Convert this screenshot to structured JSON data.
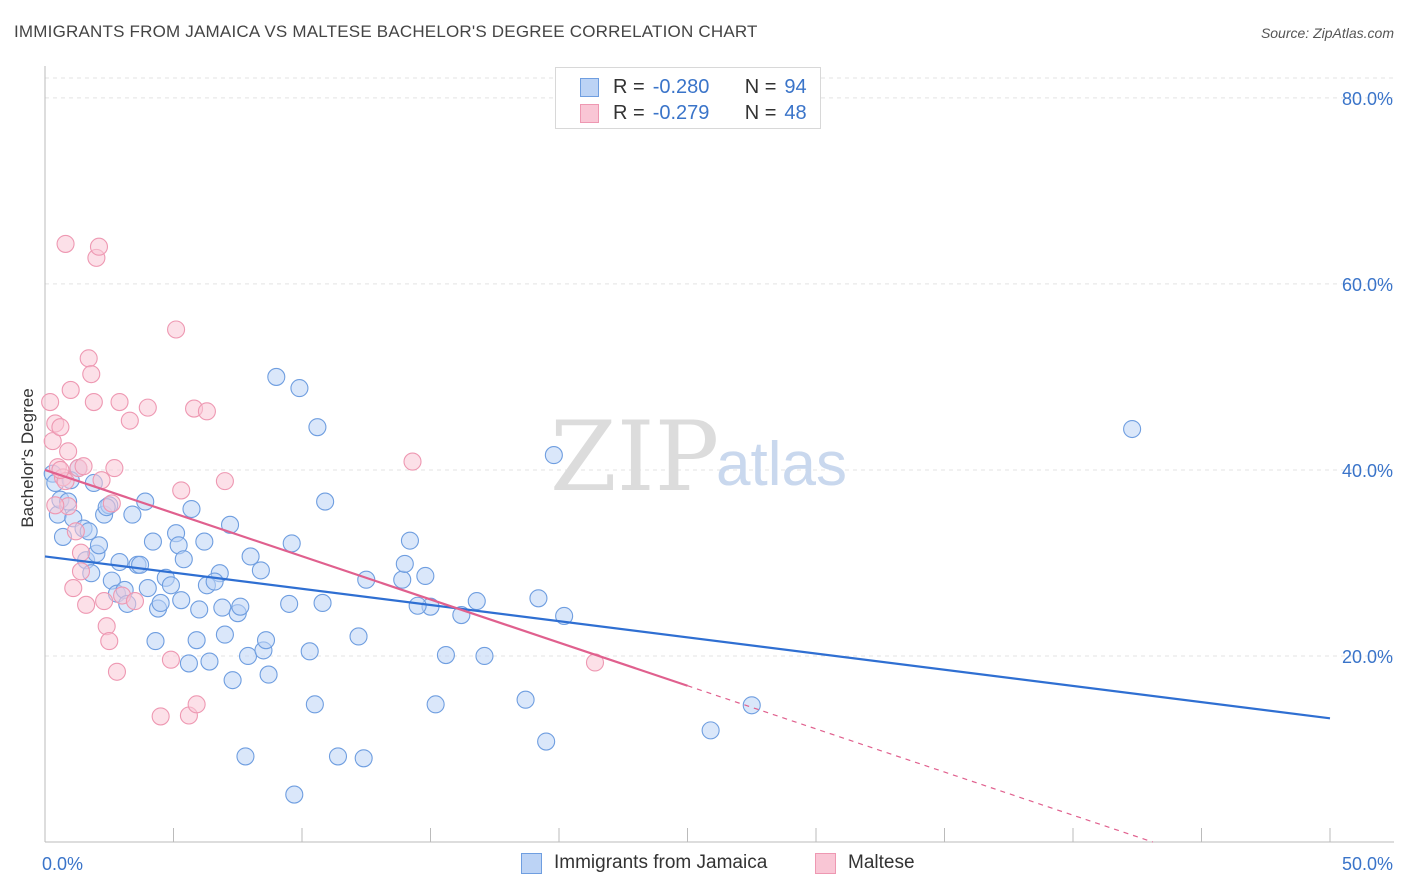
{
  "title": "IMMIGRANTS FROM JAMAICA VS MALTESE BACHELOR'S DEGREE CORRELATION CHART",
  "source": "Source: ZipAtlas.com",
  "watermark": {
    "zip": "ZIP",
    "atlas": "atlas"
  },
  "stats": [
    {
      "r_label": "R =",
      "r_value": "-0.280",
      "n_label": "N =",
      "n_value": "94",
      "fill": "#bcd3f5",
      "stroke": "#6f9ee0"
    },
    {
      "r_label": "R =",
      "r_value": "-0.279",
      "n_label": "N =",
      "n_value": "48",
      "fill": "#f9c6d5",
      "stroke": "#ee98b2"
    }
  ],
  "legend": [
    {
      "label": "Immigrants from Jamaica",
      "fill": "#bcd3f5",
      "stroke": "#6f9ee0"
    },
    {
      "label": "Maltese",
      "fill": "#f9c6d5",
      "stroke": "#ee98b2"
    }
  ],
  "chart_data": {
    "type": "scatter",
    "title": "IMMIGRANTS FROM JAMAICA VS MALTESE BACHELOR'S DEGREE CORRELATION CHART",
    "xlabel": "",
    "ylabel": "Bachelor's Degree",
    "xlim": [
      0,
      50
    ],
    "ylim": [
      0,
      83
    ],
    "x_tick_labels": [
      {
        "value": 0,
        "label": "0.0%"
      },
      {
        "value": 50,
        "label": "50.0%"
      }
    ],
    "x_minor_ticks": [
      5,
      10,
      15,
      20,
      25,
      30,
      35,
      40,
      45,
      50
    ],
    "y_ticks": [
      {
        "value": 20,
        "label": "20.0%"
      },
      {
        "value": 40,
        "label": "40.0%"
      },
      {
        "value": 60,
        "label": "60.0%"
      },
      {
        "value": 80,
        "label": "80.0%"
      }
    ],
    "grid": true,
    "legend_position": "bottom-center",
    "series": [
      {
        "name": "Immigrants from Jamaica",
        "color": "#6f9ee0",
        "fill": "#bcd3f5",
        "line_color": "#2f6fd2",
        "trend": {
          "x0": 0,
          "y0": 30.7,
          "x1": 50,
          "y1": 13.3,
          "x_dash_end": 50
        },
        "points": [
          [
            0.3,
            39.6
          ],
          [
            0.4,
            38.6
          ],
          [
            0.5,
            35.2
          ],
          [
            0.6,
            36.8
          ],
          [
            0.7,
            32.8
          ],
          [
            0.9,
            36.6
          ],
          [
            1.1,
            34.8
          ],
          [
            1.3,
            40.2
          ],
          [
            1.5,
            33.7
          ],
          [
            1.6,
            30.3
          ],
          [
            1.7,
            33.4
          ],
          [
            1.8,
            28.9
          ],
          [
            2.0,
            31.0
          ],
          [
            2.1,
            31.9
          ],
          [
            1.9,
            38.6
          ],
          [
            2.3,
            35.2
          ],
          [
            2.5,
            36.2
          ],
          [
            2.6,
            28.1
          ],
          [
            2.8,
            26.7
          ],
          [
            2.9,
            30.1
          ],
          [
            3.1,
            27.1
          ],
          [
            3.2,
            25.6
          ],
          [
            3.4,
            35.2
          ],
          [
            3.6,
            29.8
          ],
          [
            3.7,
            29.8
          ],
          [
            3.9,
            36.6
          ],
          [
            4.0,
            27.3
          ],
          [
            4.2,
            32.3
          ],
          [
            4.3,
            21.6
          ],
          [
            4.4,
            25.1
          ],
          [
            4.5,
            25.7
          ],
          [
            4.7,
            28.4
          ],
          [
            4.9,
            27.6
          ],
          [
            5.1,
            33.2
          ],
          [
            5.2,
            31.9
          ],
          [
            5.4,
            30.4
          ],
          [
            5.3,
            26.0
          ],
          [
            5.6,
            19.2
          ],
          [
            5.7,
            35.8
          ],
          [
            5.9,
            21.7
          ],
          [
            6.0,
            25.0
          ],
          [
            6.2,
            32.3
          ],
          [
            6.3,
            27.6
          ],
          [
            6.4,
            19.4
          ],
          [
            6.8,
            28.9
          ],
          [
            6.9,
            25.2
          ],
          [
            7.0,
            22.3
          ],
          [
            7.2,
            34.1
          ],
          [
            7.3,
            17.4
          ],
          [
            7.5,
            24.6
          ],
          [
            7.6,
            25.3
          ],
          [
            7.8,
            9.2
          ],
          [
            7.9,
            20.0
          ],
          [
            8.0,
            30.7
          ],
          [
            8.4,
            29.2
          ],
          [
            8.5,
            20.6
          ],
          [
            8.6,
            21.7
          ],
          [
            8.7,
            18.0
          ],
          [
            9.0,
            50.0
          ],
          [
            9.5,
            25.6
          ],
          [
            9.6,
            32.1
          ],
          [
            9.7,
            5.1
          ],
          [
            9.9,
            48.8
          ],
          [
            10.3,
            20.5
          ],
          [
            10.5,
            14.8
          ],
          [
            10.6,
            44.6
          ],
          [
            10.8,
            25.7
          ],
          [
            10.9,
            36.6
          ],
          [
            11.4,
            9.2
          ],
          [
            12.2,
            22.1
          ],
          [
            12.4,
            9.0
          ],
          [
            12.5,
            28.2
          ],
          [
            13.9,
            28.2
          ],
          [
            14.0,
            29.9
          ],
          [
            14.2,
            32.4
          ],
          [
            14.8,
            28.6
          ],
          [
            15.0,
            25.3
          ],
          [
            15.2,
            14.8
          ],
          [
            15.6,
            20.1
          ],
          [
            16.2,
            24.4
          ],
          [
            16.8,
            25.9
          ],
          [
            17.1,
            20.0
          ],
          [
            18.7,
            15.3
          ],
          [
            19.2,
            26.2
          ],
          [
            19.5,
            10.8
          ],
          [
            19.8,
            41.6
          ],
          [
            20.2,
            24.3
          ],
          [
            25.9,
            12.0
          ],
          [
            27.5,
            14.7
          ],
          [
            42.3,
            44.4
          ],
          [
            2.4,
            36.0
          ],
          [
            1.0,
            38.9
          ],
          [
            6.6,
            28.0
          ],
          [
            14.5,
            25.4
          ]
        ]
      },
      {
        "name": "Maltese",
        "color": "#ee98b2",
        "fill": "#f9c6d5",
        "line_color": "#e0608e",
        "trend": {
          "x0": 0,
          "y0": 40.0,
          "x1": 25.0,
          "y1": 16.8,
          "x_dash_end": 50
        },
        "points": [
          [
            0.2,
            47.3
          ],
          [
            0.3,
            43.1
          ],
          [
            0.4,
            45.0
          ],
          [
            0.5,
            40.3
          ],
          [
            0.6,
            44.6
          ],
          [
            0.7,
            39.2
          ],
          [
            0.8,
            38.8
          ],
          [
            0.9,
            36.1
          ],
          [
            0.9,
            42.0
          ],
          [
            1.0,
            48.6
          ],
          [
            1.1,
            27.3
          ],
          [
            1.2,
            33.4
          ],
          [
            1.3,
            40.2
          ],
          [
            1.4,
            29.1
          ],
          [
            1.5,
            40.4
          ],
          [
            1.6,
            25.5
          ],
          [
            1.7,
            52.0
          ],
          [
            1.8,
            50.3
          ],
          [
            1.9,
            47.3
          ],
          [
            2.0,
            62.8
          ],
          [
            2.1,
            64.0
          ],
          [
            2.2,
            38.9
          ],
          [
            2.3,
            25.9
          ],
          [
            2.4,
            23.2
          ],
          [
            2.5,
            21.6
          ],
          [
            2.6,
            36.4
          ],
          [
            2.7,
            40.2
          ],
          [
            2.8,
            18.3
          ],
          [
            2.9,
            47.3
          ],
          [
            3.0,
            26.5
          ],
          [
            3.3,
            45.3
          ],
          [
            3.5,
            25.9
          ],
          [
            4.0,
            46.7
          ],
          [
            4.5,
            13.5
          ],
          [
            4.9,
            19.6
          ],
          [
            5.1,
            55.1
          ],
          [
            5.3,
            37.8
          ],
          [
            5.6,
            13.6
          ],
          [
            5.8,
            46.6
          ],
          [
            5.9,
            14.8
          ],
          [
            6.3,
            46.3
          ],
          [
            7.0,
            38.8
          ],
          [
            14.3,
            40.9
          ],
          [
            21.4,
            19.3
          ],
          [
            0.8,
            64.3
          ],
          [
            0.6,
            40.0
          ],
          [
            1.4,
            31.1
          ],
          [
            0.4,
            36.2
          ]
        ]
      }
    ]
  }
}
